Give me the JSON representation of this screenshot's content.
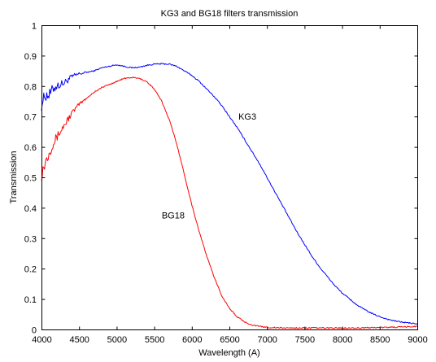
{
  "chart_data": {
    "type": "line",
    "title": "KG3 and BG18 filters transmission",
    "xlabel": "Wavelength (A)",
    "ylabel": "Transmission",
    "xlim": [
      4000,
      9000
    ],
    "ylim": [
      0,
      1
    ],
    "x_ticks": [
      "4000",
      "4500",
      "5000",
      "5500",
      "6000",
      "6500",
      "7000",
      "7500",
      "8000",
      "8500",
      "9000"
    ],
    "y_ticks": [
      "0",
      "0.1",
      "0.2",
      "0.3",
      "0.4",
      "0.5",
      "0.6",
      "0.7",
      "0.8",
      "0.9",
      "1"
    ],
    "grid": false,
    "series": [
      {
        "name": "KG3",
        "color": "#0000ff",
        "x": [
          4000,
          4050,
          4100,
          4150,
          4200,
          4300,
          4400,
          4500,
          4600,
          4700,
          4800,
          4900,
          5000,
          5100,
          5200,
          5300,
          5400,
          5500,
          5600,
          5700,
          5800,
          5900,
          6000,
          6100,
          6200,
          6300,
          6400,
          6500,
          6600,
          6700,
          6800,
          6900,
          7000,
          7100,
          7200,
          7300,
          7400,
          7500,
          7600,
          7700,
          7800,
          7900,
          8000,
          8100,
          8200,
          8300,
          8400,
          8500,
          8600,
          8700,
          8800,
          8900,
          9000
        ],
        "y": [
          0.74,
          0.77,
          0.77,
          0.79,
          0.8,
          0.81,
          0.83,
          0.84,
          0.845,
          0.85,
          0.86,
          0.865,
          0.87,
          0.865,
          0.86,
          0.862,
          0.868,
          0.872,
          0.873,
          0.872,
          0.865,
          0.85,
          0.835,
          0.815,
          0.79,
          0.765,
          0.735,
          0.7,
          0.665,
          0.625,
          0.585,
          0.545,
          0.5,
          0.455,
          0.41,
          0.365,
          0.32,
          0.28,
          0.24,
          0.205,
          0.175,
          0.145,
          0.12,
          0.1,
          0.08,
          0.065,
          0.052,
          0.042,
          0.034,
          0.028,
          0.024,
          0.021,
          0.018
        ]
      },
      {
        "name": "BG18",
        "color": "#ff0000",
        "x": [
          4000,
          4050,
          4100,
          4150,
          4200,
          4300,
          4400,
          4500,
          4600,
          4700,
          4800,
          4900,
          5000,
          5100,
          5200,
          5250,
          5300,
          5400,
          5500,
          5600,
          5700,
          5800,
          5900,
          6000,
          6100,
          6200,
          6300,
          6400,
          6500,
          6600,
          6700,
          6800,
          6900,
          7000,
          7100,
          7200,
          7400,
          7600,
          7800,
          8000,
          8200,
          8400,
          8600,
          8800,
          9000
        ],
        "y": [
          0.51,
          0.55,
          0.58,
          0.61,
          0.63,
          0.67,
          0.71,
          0.74,
          0.76,
          0.78,
          0.795,
          0.805,
          0.815,
          0.825,
          0.828,
          0.827,
          0.825,
          0.815,
          0.79,
          0.75,
          0.69,
          0.61,
          0.51,
          0.41,
          0.32,
          0.24,
          0.17,
          0.11,
          0.07,
          0.042,
          0.025,
          0.015,
          0.01,
          0.007,
          0.006,
          0.005,
          0.005,
          0.005,
          0.005,
          0.005,
          0.005,
          0.006,
          0.007,
          0.008,
          0.01
        ]
      }
    ],
    "annotations": [
      {
        "text": "KG3",
        "x": 6620,
        "y": 0.69
      },
      {
        "text": "BG18",
        "x": 5600,
        "y": 0.365
      }
    ]
  }
}
